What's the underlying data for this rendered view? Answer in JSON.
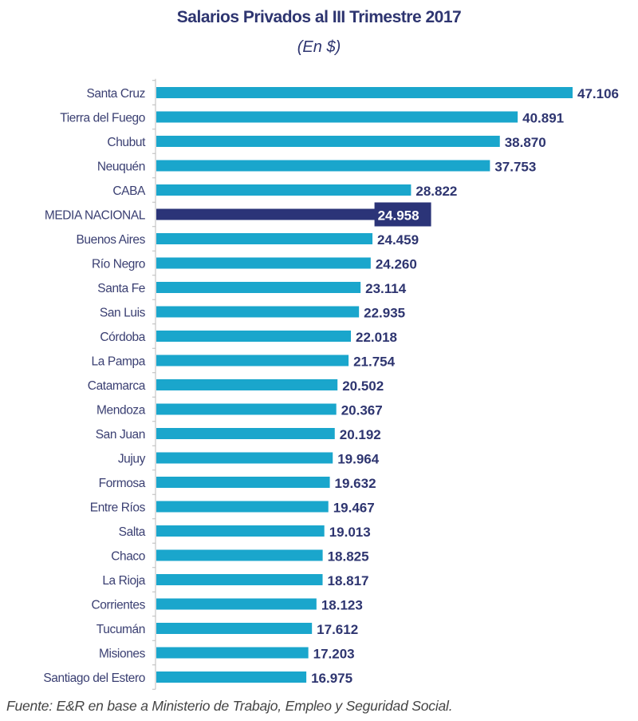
{
  "chart_data": {
    "type": "bar",
    "orientation": "horizontal",
    "title": "Salarios Privados al III Trimestre 2017",
    "subtitle": "(En $)",
    "xlabel": "",
    "ylabel": "",
    "xlim": [
      0,
      47106
    ],
    "grid": false,
    "legend": "none",
    "categories": [
      "Santa Cruz",
      "Tierra del Fuego",
      "Chubut",
      "Neuquén",
      "CABA",
      "MEDIA NACIONAL",
      "Buenos Aires",
      "Río Negro",
      "Santa Fe",
      "San Luis",
      "Córdoba",
      "La Pampa",
      "Catamarca",
      "Mendoza",
      "San Juan",
      "Jujuy",
      "Formosa",
      "Entre Ríos",
      "Salta",
      "Chaco",
      "La Rioja",
      "Corrientes",
      "Tucumán",
      "Misiones",
      "Santiago del Estero"
    ],
    "values": [
      47106,
      40891,
      38870,
      37753,
      28822,
      24958,
      24459,
      24260,
      23114,
      22935,
      22018,
      21754,
      20502,
      20367,
      20192,
      19964,
      19632,
      19467,
      19013,
      18825,
      18817,
      18123,
      17612,
      17203,
      16975
    ],
    "value_labels": [
      "47.106",
      "40.891",
      "38.870",
      "37.753",
      "28.822",
      "24.958",
      "24.459",
      "24.260",
      "23.114",
      "22.935",
      "22.018",
      "21.754",
      "20.502",
      "20.367",
      "20.192",
      "19.964",
      "19.632",
      "19.467",
      "19.013",
      "18.825",
      "18.817",
      "18.123",
      "17.612",
      "17.203",
      "16.975"
    ],
    "highlight_category": "MEDIA NACIONAL",
    "colors": {
      "bar": "#1aa6cc",
      "highlight": "#2b3478",
      "label": "#2e3570",
      "axis": "#bbbbbb"
    }
  },
  "footer": "Fuente: E&R en base a Ministerio de Trabajo, Empleo y Seguridad Social."
}
